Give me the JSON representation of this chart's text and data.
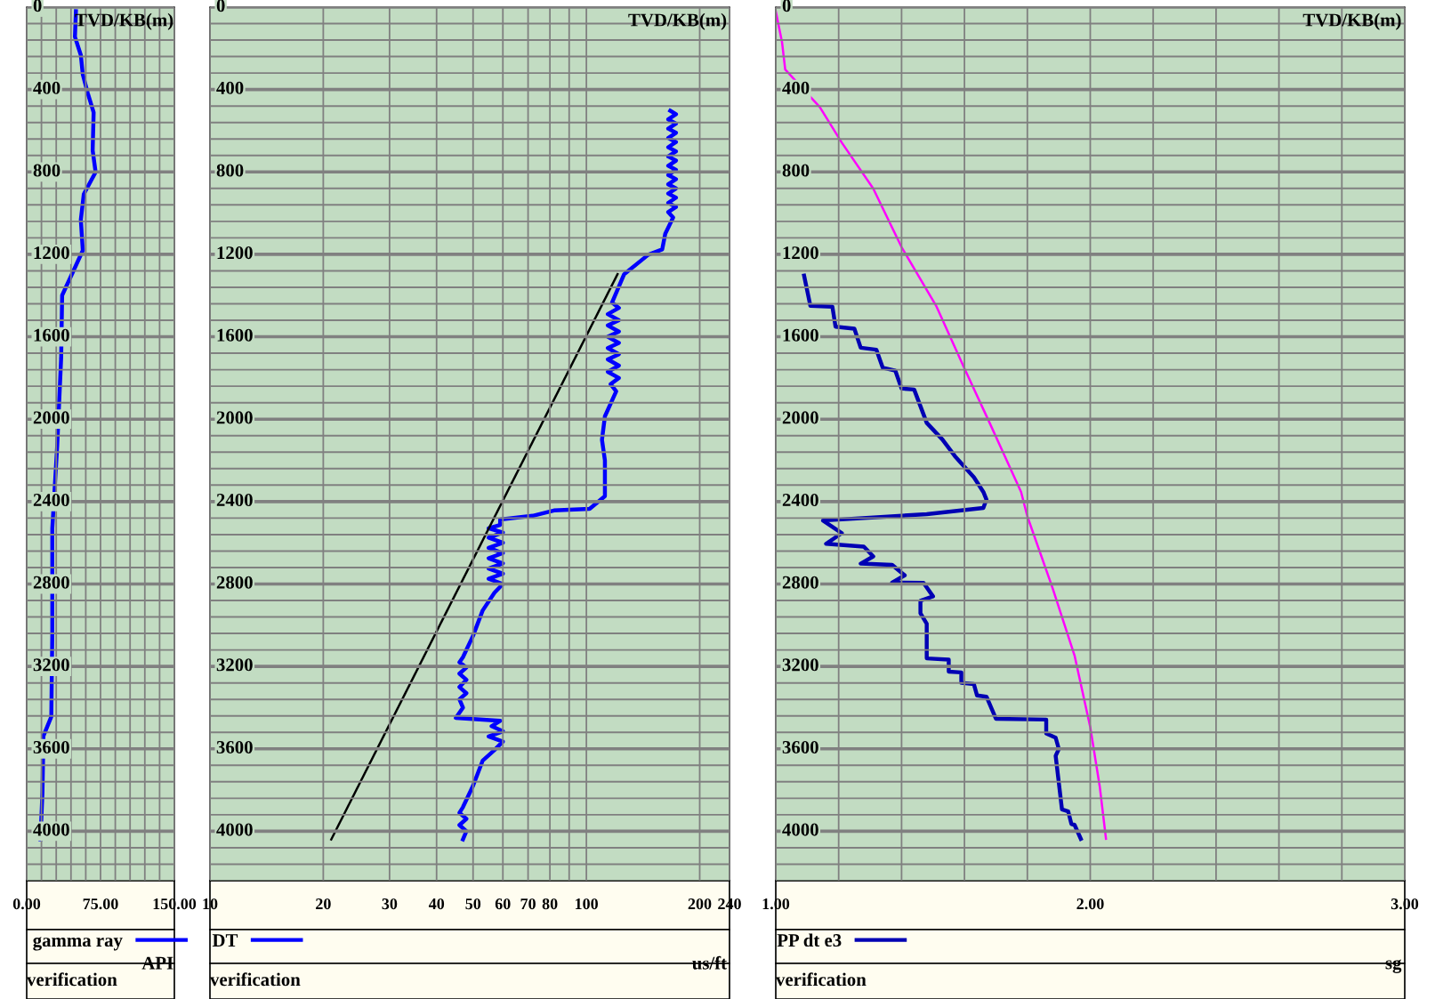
{
  "chart_data": [
    {
      "type": "line",
      "orientation": "horizontal",
      "ylabel": "TVD/KB(m)",
      "xlabel": "API",
      "xlim": [
        0,
        150
      ],
      "xticks": [
        {
          "value": 0,
          "label": "0.00"
        },
        {
          "value": 15,
          "label": null
        },
        {
          "value": 30,
          "label": null
        },
        {
          "value": 45,
          "label": null
        },
        {
          "value": 60,
          "label": null
        },
        {
          "value": 75,
          "label": "75.00"
        },
        {
          "value": 90,
          "label": null
        },
        {
          "value": 105,
          "label": null
        },
        {
          "value": 120,
          "label": null
        },
        {
          "value": 135,
          "label": null
        },
        {
          "value": 150,
          "label": "150.00"
        }
      ],
      "ylim": [
        4240,
        0
      ],
      "yticks": [
        0,
        {
          "value": 80,
          "label": null
        },
        {
          "value": 160,
          "label": null
        },
        {
          "value": 240,
          "label": null
        },
        {
          "value": 320,
          "label": null
        },
        400,
        {
          "value": 480,
          "label": null
        },
        {
          "value": 560,
          "label": null
        },
        {
          "value": 640,
          "label": null
        },
        {
          "value": 720,
          "label": null
        },
        800,
        {
          "value": 880,
          "label": null
        },
        {
          "value": 960,
          "label": null
        },
        {
          "value": 1040,
          "label": null
        },
        {
          "value": 1120,
          "label": null
        },
        1200,
        {
          "value": 1280,
          "label": null
        },
        {
          "value": 1360,
          "label": null
        },
        {
          "value": 1440,
          "label": null
        },
        {
          "value": 1520,
          "label": null
        },
        1600,
        {
          "value": 1680,
          "label": null
        },
        {
          "value": 1760,
          "label": null
        },
        {
          "value": 1840,
          "label": null
        },
        {
          "value": 1920,
          "label": null
        },
        2000,
        {
          "value": 2080,
          "label": null
        },
        {
          "value": 2160,
          "label": null
        },
        {
          "value": 2240,
          "label": null
        },
        {
          "value": 2320,
          "label": null
        },
        2400,
        {
          "value": 2480,
          "label": null
        },
        {
          "value": 2560,
          "label": null
        },
        {
          "value": 2640,
          "label": null
        },
        {
          "value": 2720,
          "label": null
        },
        2800,
        {
          "value": 2880,
          "label": null
        },
        {
          "value": 2960,
          "label": null
        },
        {
          "value": 3040,
          "label": null
        },
        {
          "value": 3120,
          "label": null
        },
        3200,
        {
          "value": 3280,
          "label": null
        },
        {
          "value": 3360,
          "label": null
        },
        {
          "value": 3440,
          "label": null
        },
        {
          "value": 3520,
          "label": null
        },
        3600,
        {
          "value": 3680,
          "label": null
        },
        {
          "value": 3760,
          "label": null
        },
        {
          "value": 3840,
          "label": null
        },
        {
          "value": 3920,
          "label": null
        },
        4000,
        {
          "value": 4080,
          "label": null
        },
        {
          "value": 4160,
          "label": null
        }
      ],
      "grid": true,
      "legend": "bottom",
      "marker": "none",
      "line_style": "solid",
      "annotations": [
        "verification"
      ],
      "series": [
        {
          "name": "gamma ray",
          "color": "#0000ff",
          "x": [
            20,
            144,
            233,
            327,
            417,
            511,
            695,
            801,
            908,
            1032,
            1181,
            1275,
            1399,
            1702,
            2129,
            2531,
            3047,
            3444,
            3538,
            3812,
            4040
          ],
          "values": [
            50,
            49,
            55,
            57,
            62,
            68,
            67,
            70,
            58,
            55,
            57,
            48,
            36,
            35,
            31,
            26,
            26,
            25,
            17,
            16,
            14
          ]
        }
      ]
    },
    {
      "type": "line",
      "orientation": "horizontal",
      "log": "x",
      "ylabel": "TVD/KB(m)",
      "xlabel": "us/ft",
      "xlim": [
        10,
        240
      ],
      "xticks": [
        10,
        20,
        30,
        40,
        50,
        60,
        70,
        80,
        {
          "value": 90,
          "label": null
        },
        100,
        200,
        240
      ],
      "ylim": [
        4240,
        0
      ],
      "yticks": [
        0,
        {
          "value": 80,
          "label": null
        },
        {
          "value": 160,
          "label": null
        },
        {
          "value": 240,
          "label": null
        },
        {
          "value": 320,
          "label": null
        },
        400,
        {
          "value": 480,
          "label": null
        },
        {
          "value": 560,
          "label": null
        },
        {
          "value": 640,
          "label": null
        },
        {
          "value": 720,
          "label": null
        },
        800,
        {
          "value": 880,
          "label": null
        },
        {
          "value": 960,
          "label": null
        },
        {
          "value": 1040,
          "label": null
        },
        {
          "value": 1120,
          "label": null
        },
        1200,
        {
          "value": 1280,
          "label": null
        },
        {
          "value": 1360,
          "label": null
        },
        {
          "value": 1440,
          "label": null
        },
        {
          "value": 1520,
          "label": null
        },
        1600,
        {
          "value": 1680,
          "label": null
        },
        {
          "value": 1760,
          "label": null
        },
        {
          "value": 1840,
          "label": null
        },
        {
          "value": 1920,
          "label": null
        },
        2000,
        {
          "value": 2080,
          "label": null
        },
        {
          "value": 2160,
          "label": null
        },
        {
          "value": 2240,
          "label": null
        },
        {
          "value": 2320,
          "label": null
        },
        2400,
        {
          "value": 2480,
          "label": null
        },
        {
          "value": 2560,
          "label": null
        },
        {
          "value": 2640,
          "label": null
        },
        {
          "value": 2720,
          "label": null
        },
        2800,
        {
          "value": 2880,
          "label": null
        },
        {
          "value": 2960,
          "label": null
        },
        {
          "value": 3040,
          "label": null
        },
        {
          "value": 3120,
          "label": null
        },
        3200,
        {
          "value": 3280,
          "label": null
        },
        {
          "value": 3360,
          "label": null
        },
        {
          "value": 3440,
          "label": null
        },
        {
          "value": 3520,
          "label": null
        },
        3600,
        {
          "value": 3680,
          "label": null
        },
        {
          "value": 3760,
          "label": null
        },
        {
          "value": 3840,
          "label": null
        },
        {
          "value": 3920,
          "label": null
        },
        4000,
        {
          "value": 4080,
          "label": null
        },
        {
          "value": 4160,
          "label": null
        }
      ],
      "grid": true,
      "legend": "bottom",
      "marker": "none",
      "line_style": "solid",
      "annotations": [
        "verification"
      ],
      "series": [
        {
          "name": "DT",
          "color": "#0000ff",
          "x": [
            503,
            520,
            545,
            565,
            590,
            610,
            635,
            655,
            680,
            700,
            725,
            745,
            770,
            790,
            815,
            835,
            860,
            880,
            905,
            925,
            950,
            970,
            995,
            1021,
            1100,
            1176,
            1202,
            1296,
            1434,
            1460,
            1490,
            1520,
            1545,
            1575,
            1600,
            1630,
            1655,
            1685,
            1710,
            1740,
            1770,
            1800,
            1830,
            1865,
            1986,
            2100,
            2200,
            2305,
            2374,
            2435,
            2443,
            2469,
            2487,
            2513,
            2530,
            2550,
            2575,
            2600,
            2625,
            2650,
            2675,
            2700,
            2725,
            2750,
            2775,
            2800,
            2842,
            2929,
            3051,
            3155,
            3180,
            3205,
            3235,
            3265,
            3300,
            3330,
            3360,
            3400,
            3450,
            3464,
            3490,
            3515,
            3540,
            3565,
            3606,
            3658,
            3779,
            3883,
            3910,
            3940,
            3970,
            4000,
            4040
          ],
          "values": [
            167,
            173,
            165,
            173,
            165,
            173,
            165,
            173,
            165,
            173,
            165,
            173,
            165,
            173,
            165,
            173,
            165,
            173,
            165,
            173,
            165,
            173,
            165,
            170,
            162,
            159,
            146,
            126,
            117,
            122,
            114,
            122,
            114,
            122,
            114,
            122,
            114,
            122,
            114,
            122,
            114,
            122,
            116,
            120,
            112,
            110,
            112,
            112,
            112,
            102,
            82,
            72,
            59,
            59,
            55,
            60,
            55,
            60,
            55,
            60,
            55,
            60,
            55,
            60,
            55,
            60,
            57,
            53,
            50,
            47,
            46,
            48,
            46,
            48,
            46,
            48,
            46,
            47,
            45,
            59,
            56,
            60,
            55,
            60,
            57,
            53,
            50,
            47,
            46,
            48,
            46,
            48,
            47
          ]
        },
        {
          "color": "#000000",
          "x": [
            1296,
            4040
          ],
          "values": [
            121,
            21
          ]
        }
      ]
    },
    {
      "type": "line",
      "orientation": "horizontal",
      "ylabel": "TVD/KB(m)",
      "xlabel": "sg",
      "xlim": [
        1,
        3
      ],
      "xticks": [
        {
          "value": 1,
          "label": "1.00"
        },
        {
          "value": 1.2,
          "label": null
        },
        {
          "value": 1.4,
          "label": null
        },
        {
          "value": 1.6,
          "label": null
        },
        {
          "value": 1.8,
          "label": null
        },
        {
          "value": 2,
          "label": "2.00"
        },
        {
          "value": 2.2,
          "label": null
        },
        {
          "value": 2.4,
          "label": null
        },
        {
          "value": 2.6,
          "label": null
        },
        {
          "value": 2.8,
          "label": null
        },
        {
          "value": 3,
          "label": "3.00"
        }
      ],
      "ylim": [
        4240,
        0
      ],
      "yticks": [
        0,
        {
          "value": 80,
          "label": null
        },
        {
          "value": 160,
          "label": null
        },
        {
          "value": 240,
          "label": null
        },
        {
          "value": 320,
          "label": null
        },
        400,
        {
          "value": 480,
          "label": null
        },
        {
          "value": 560,
          "label": null
        },
        {
          "value": 640,
          "label": null
        },
        {
          "value": 720,
          "label": null
        },
        800,
        {
          "value": 880,
          "label": null
        },
        {
          "value": 960,
          "label": null
        },
        {
          "value": 1040,
          "label": null
        },
        {
          "value": 1120,
          "label": null
        },
        1200,
        {
          "value": 1280,
          "label": null
        },
        {
          "value": 1360,
          "label": null
        },
        {
          "value": 1440,
          "label": null
        },
        {
          "value": 1520,
          "label": null
        },
        1600,
        {
          "value": 1680,
          "label": null
        },
        {
          "value": 1760,
          "label": null
        },
        {
          "value": 1840,
          "label": null
        },
        {
          "value": 1920,
          "label": null
        },
        2000,
        {
          "value": 2080,
          "label": null
        },
        {
          "value": 2160,
          "label": null
        },
        {
          "value": 2240,
          "label": null
        },
        {
          "value": 2320,
          "label": null
        },
        2400,
        {
          "value": 2480,
          "label": null
        },
        {
          "value": 2560,
          "label": null
        },
        {
          "value": 2640,
          "label": null
        },
        {
          "value": 2720,
          "label": null
        },
        2800,
        {
          "value": 2880,
          "label": null
        },
        {
          "value": 2960,
          "label": null
        },
        {
          "value": 3040,
          "label": null
        },
        {
          "value": 3120,
          "label": null
        },
        3200,
        {
          "value": 3280,
          "label": null
        },
        {
          "value": 3360,
          "label": null
        },
        {
          "value": 3440,
          "label": null
        },
        {
          "value": 3520,
          "label": null
        },
        3600,
        {
          "value": 3680,
          "label": null
        },
        {
          "value": 3760,
          "label": null
        },
        {
          "value": 3840,
          "label": null
        },
        {
          "value": 3920,
          "label": null
        },
        4000,
        {
          "value": 4080,
          "label": null
        },
        {
          "value": 4160,
          "label": null
        }
      ],
      "grid": true,
      "legend": "bottom",
      "marker": "none",
      "line_style": "solid",
      "annotations": [
        "verification"
      ],
      "series": [
        {
          "name": "PP dt e3",
          "color": "#0000b4",
          "x": [
            1303,
            1450,
            1454,
            1551,
            1561,
            1653,
            1663,
            1750,
            1764,
            1851,
            1856,
            2018,
            2099,
            2180,
            2282,
            2353,
            2390,
            2431,
            2461,
            2492,
            2553,
            2605,
            2619,
            2666,
            2701,
            2707,
            2758,
            2793,
            2795,
            2860,
            2881,
            2942,
            2993,
            3161,
            3167,
            3225,
            3229,
            3280,
            3286,
            3341,
            3347,
            3454,
            3458,
            3525,
            3546,
            3601,
            3634,
            3894,
            3904,
            3965,
            3969,
            4037
          ],
          "values": [
            1.09,
            1.11,
            1.18,
            1.19,
            1.25,
            1.27,
            1.32,
            1.34,
            1.38,
            1.4,
            1.44,
            1.48,
            1.53,
            1.57,
            1.63,
            1.66,
            1.67,
            1.66,
            1.48,
            1.15,
            1.21,
            1.16,
            1.28,
            1.31,
            1.27,
            1.37,
            1.41,
            1.37,
            1.47,
            1.5,
            1.46,
            1.46,
            1.48,
            1.48,
            1.55,
            1.55,
            1.59,
            1.59,
            1.63,
            1.64,
            1.67,
            1.7,
            1.86,
            1.86,
            1.89,
            1.9,
            1.89,
            1.91,
            1.93,
            1.94,
            1.95,
            1.97
          ]
        },
        {
          "color": "#ff00ff",
          "x": [
            20,
            171,
            303,
            485,
            658,
            881,
            1165,
            1450,
            1754,
            2018,
            2353,
            2472,
            2819,
            3147,
            3495,
            3781,
            4037
          ],
          "values": [
            1.0,
            1.02,
            1.03,
            1.14,
            1.21,
            1.31,
            1.4,
            1.51,
            1.6,
            1.68,
            1.78,
            1.8,
            1.88,
            1.95,
            2.0,
            2.03,
            2.05
          ]
        }
      ]
    }
  ]
}
